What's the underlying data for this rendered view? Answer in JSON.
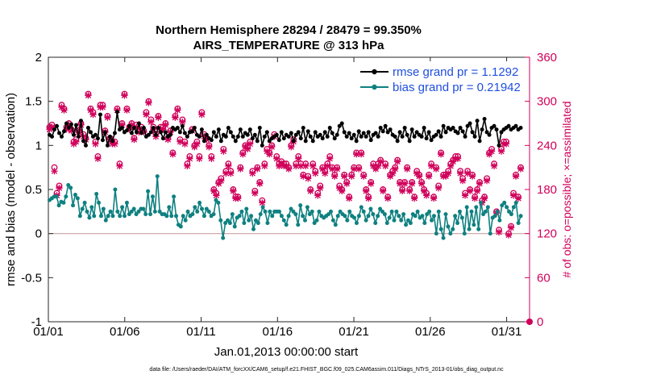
{
  "chart_data": {
    "type": "line",
    "title_line1": "Northern Hemisphere 28294 / 28479 = 99.350%",
    "title_line2": "AIRS_TEMPERATURE @ 313 hPa",
    "xlabel": "Jan.01,2013 00:00:00 start",
    "ylabel": "rmse and bias (model - observation)",
    "ylabel_right": "# of obs: o=possible; ×=assimilated",
    "footnote": "data file: /Users/raeder/DAI/ATM_forcXX/CAM6_setup/f.e21.FHIST_BGC.f09_025.CAM6assim.011/Diags_NTrS_2013-01/obs_diag_output.nc",
    "x_range": [
      0,
      31.5
    ],
    "ylim": [
      -1,
      2
    ],
    "ylim_right": [
      0,
      360
    ],
    "x_tick_positions": [
      0,
      5,
      10,
      15,
      20,
      25,
      30
    ],
    "x_tick_labels": [
      "01/01",
      "01/06",
      "01/11",
      "01/16",
      "01/21",
      "01/26",
      "01/31"
    ],
    "y_ticks": [
      -1,
      -0.5,
      0,
      0.5,
      1,
      1.5,
      2
    ],
    "y_tick_labels": [
      "-1",
      "-0.5",
      "0",
      "0.5",
      "1",
      "1.5",
      "2"
    ],
    "y_right_ticks": [
      0,
      60,
      120,
      180,
      240,
      300,
      360
    ],
    "y_right_tick_labels": [
      "0",
      "60",
      "120",
      "180",
      "240",
      "300",
      "360"
    ],
    "legend": [
      {
        "name": "rmse grand pr = 1.1292",
        "color": "#000000"
      },
      {
        "name": "bias grand pr = 0.21942",
        "color": "#0f8080"
      }
    ],
    "colors": {
      "rmse": "#000000",
      "bias": "#0f8080",
      "obs": "#d0005a",
      "zero_line": "#c9a0a0"
    },
    "series": [
      {
        "name": "rmse",
        "values": [
          1.12,
          1.1,
          1.18,
          1.22,
          1.14,
          1.1,
          1.16,
          1.25,
          1.2,
          1.24,
          1.12,
          1.23,
          1.1,
          1.28,
          1.05,
          1.0,
          1.2,
          1.15,
          1.1,
          1.12,
          1.08,
          1.35,
          1.06,
          1.15,
          1.0,
          1.1,
          1.05,
          1.14,
          1.38,
          1.18,
          1.2,
          1.15,
          1.17,
          1.22,
          1.14,
          1.2,
          1.15,
          1.25,
          1.14,
          1.2,
          1.1,
          1.12,
          1.15,
          1.2,
          1.12,
          1.2,
          1.15,
          1.08,
          1.15,
          1.1,
          1.12,
          1.2,
          1.18,
          1.2,
          1.15,
          1.22,
          1.14,
          1.1,
          1.15,
          1.16,
          1.2,
          1.12,
          1.1,
          1.18,
          1.05,
          1.12,
          1.08,
          1.06,
          1.15,
          1.1,
          1.18,
          1.05,
          1.12,
          1.1,
          1.2,
          1.15,
          1.1,
          1.05,
          1.1,
          1.18,
          1.1,
          1.14,
          1.12,
          1.18,
          1.08,
          1.12,
          1.05,
          1.2,
          1.0,
          1.1,
          1.15,
          1.05,
          1.08,
          1.1,
          1.12,
          1.06,
          1.15,
          1.08,
          1.12,
          1.1,
          1.14,
          1.05,
          1.12,
          1.15,
          1.08,
          1.2,
          1.05,
          1.16,
          1.1,
          1.05,
          1.15,
          1.1,
          1.12,
          1.08,
          1.15,
          1.1,
          1.2,
          1.14,
          1.08,
          1.12,
          1.22,
          1.25,
          1.15,
          1.1,
          1.14,
          1.08,
          1.12,
          1.05,
          1.16,
          1.1,
          1.14,
          1.1,
          1.15,
          1.06,
          1.12,
          1.14,
          1.1,
          1.2,
          1.16,
          1.22,
          1.15,
          1.18,
          1.12,
          1.1,
          1.05,
          1.15,
          1.1,
          1.2,
          1.12,
          1.05,
          1.18,
          1.1,
          1.15,
          1.12,
          1.1,
          1.2,
          1.08,
          1.15,
          1.06,
          1.1,
          1.12,
          1.16,
          1.1,
          1.22,
          1.15,
          1.2,
          1.18,
          1.2,
          1.16,
          1.14,
          1.2,
          1.16,
          1.1,
          1.22,
          1.25,
          1.15,
          1.1,
          1.28,
          1.05,
          1.18,
          1.3,
          1.15,
          1.12,
          1.2,
          1.22,
          1.18,
          1.0,
          1.15,
          1.18,
          1.2,
          1.22,
          1.18,
          1.2,
          1.22,
          1.18,
          1.2
        ]
      },
      {
        "name": "bias",
        "values": [
          0.38,
          0.4,
          0.42,
          0.42,
          0.32,
          0.36,
          0.35,
          0.42,
          0.55,
          0.52,
          0.32,
          0.44,
          0.4,
          0.2,
          0.28,
          0.35,
          0.25,
          0.18,
          0.3,
          0.2,
          0.45,
          0.35,
          0.2,
          0.28,
          0.15,
          0.2,
          0.25,
          0.2,
          0.5,
          0.25,
          0.2,
          0.3,
          0.2,
          0.35,
          0.22,
          0.25,
          0.28,
          0.22,
          0.25,
          0.28,
          0.28,
          0.22,
          0.48,
          0.22,
          0.42,
          0.25,
          0.65,
          0.25,
          0.22,
          0.22,
          0.2,
          0.3,
          0.2,
          0.42,
          0.2,
          0.1,
          0.08,
          0.2,
          0.15,
          0.25,
          0.2,
          0.22,
          0.3,
          0.25,
          0.35,
          0.28,
          0.2,
          0.28,
          0.25,
          0.2,
          0.22,
          0.38,
          0.35,
          0.15,
          -0.05,
          0.12,
          0.15,
          0.12,
          0.22,
          0.08,
          0.18,
          0.2,
          0.25,
          0.12,
          0.28,
          0.15,
          0.2,
          0.05,
          0.15,
          0.12,
          0.22,
          0.3,
          0.25,
          0.12,
          0.25,
          0.2,
          0.25,
          0.25,
          0.25,
          0.2,
          0.15,
          0.1,
          0.2,
          0.28,
          0.25,
          0.22,
          0.1,
          0.32,
          0.2,
          0.15,
          0.3,
          0.22,
          0.25,
          0.12,
          0.15,
          0.25,
          0.2,
          0.18,
          0.2,
          0.22,
          0.25,
          0.15,
          0.1,
          0.2,
          0.25,
          0.22,
          0.2,
          0.15,
          0.25,
          0.2,
          0.18,
          0.12,
          0.2,
          0.3,
          0.25,
          0.15,
          0.2,
          0.28,
          0.22,
          0.12,
          0.2,
          0.28,
          0.25,
          0.22,
          0.12,
          0.18,
          0.25,
          0.15,
          0.25,
          0.2,
          0.15,
          0.22,
          0.1,
          0.15,
          0.12,
          0.22,
          0.2,
          0.25,
          0.18,
          0.2,
          0.12,
          0.22,
          0.25,
          0.15,
          0.2,
          0.0,
          0.25,
          0.05,
          -0.05,
          0.22,
          0.08,
          0.0,
          0.05,
          0.2,
          0.12,
          0.25,
          0.18,
          0.0,
          0.3,
          0.05,
          0.25,
          0.1,
          0.3,
          0.05,
          0.35,
          0.22,
          0.25,
          0.3,
          0.0,
          0.18,
          0.2,
          0.25,
          0.15,
          0.32,
          0.35,
          0.3,
          0.25,
          0.22,
          0.3,
          0.35,
          0.12,
          0.2
        ]
      },
      {
        "name": "obs_possible",
        "values": [
          265,
          268,
          210,
          175,
          185,
          295,
          290,
          265,
          270,
          262,
          245,
          248,
          260,
          270,
          255,
          250,
          310,
          290,
          285,
          245,
          225,
          295,
          295,
          260,
          280,
          250,
          245,
          245,
          290,
          215,
          270,
          310,
          290,
          265,
          270,
          250,
          268,
          260,
          265,
          260,
          285,
          300,
          275,
          265,
          255,
          280,
          265,
          265,
          270,
          250,
          260,
          230,
          280,
          290,
          248,
          275,
          245,
          215,
          225,
          262,
          240,
          245,
          225,
          285,
          255,
          250,
          240,
          225,
          180,
          175,
          190,
          195,
          235,
          205,
          215,
          205,
          180,
          170,
          170,
          210,
          230,
          240,
          238,
          245,
          205,
          178,
          210,
          190,
          165,
          215,
          235,
          230,
          240,
          255,
          225,
          215,
          218,
          215,
          215,
          210,
          240,
          248,
          215,
          225,
          215,
          200,
          215,
          198,
          180,
          215,
          205,
          175,
          185,
          210,
          205,
          215,
          225,
          210,
          200,
          210,
          185,
          180,
          200,
          190,
          170,
          200,
          210,
          230,
          210,
          230,
          200,
          180,
          170,
          190,
          215,
          210,
          215,
          220,
          180,
          215,
          170,
          200,
          205,
          210,
          220,
          190,
          180,
          190,
          210,
          180,
          190,
          170,
          205,
          200,
          190,
          180,
          175,
          200,
          215,
          170,
          210,
          185,
          230,
          200,
          200,
          205,
          215,
          220,
          225,
          225,
          205,
          195,
          175,
          205,
          180,
          200,
          170,
          180,
          190,
          165,
          170,
          195,
          230,
          235,
          215,
          150,
          125,
          235,
          245,
          245,
          120,
          130,
          175,
          200,
          170,
          210
        ]
      },
      {
        "name": "obs_assimilated",
        "values": [
          262,
          265,
          205,
          172,
          182,
          292,
          288,
          262,
          268,
          260,
          242,
          245,
          258,
          268,
          252,
          248,
          308,
          288,
          282,
          242,
          222,
          292,
          292,
          258,
          278,
          248,
          242,
          242,
          288,
          212,
          268,
          308,
          288,
          262,
          268,
          248,
          265,
          258,
          262,
          258,
          282,
          298,
          272,
          262,
          252,
          278,
          262,
          262,
          268,
          248,
          258,
          228,
          278,
          288,
          245,
          272,
          242,
          212,
          222,
          260,
          238,
          242,
          222,
          282,
          252,
          248,
          238,
          222,
          178,
          172,
          188,
          192,
          232,
          202,
          212,
          202,
          178,
          168,
          168,
          208,
          228,
          238,
          235,
          242,
          202,
          175,
          208,
          188,
          162,
          212,
          232,
          228,
          238,
          252,
          222,
          212,
          215,
          212,
          212,
          208,
          238,
          245,
          212,
          222,
          212,
          198,
          212,
          195,
          178,
          212,
          202,
          172,
          182,
          208,
          202,
          212,
          222,
          208,
          198,
          208,
          182,
          178,
          198,
          188,
          168,
          198,
          208,
          228,
          208,
          228,
          198,
          178,
          168,
          188,
          212,
          208,
          212,
          218,
          178,
          212,
          168,
          198,
          202,
          208,
          218,
          188,
          178,
          188,
          208,
          178,
          188,
          168,
          202,
          198,
          188,
          178,
          172,
          198,
          212,
          168,
          208,
          182,
          228,
          198,
          198,
          202,
          212,
          218,
          222,
          222,
          202,
          192,
          172,
          202,
          178,
          198,
          168,
          178,
          188,
          162,
          168,
          192,
          228,
          232,
          212,
          148,
          122,
          232,
          242,
          242,
          118,
          128,
          172,
          198,
          168,
          208
        ]
      }
    ]
  }
}
